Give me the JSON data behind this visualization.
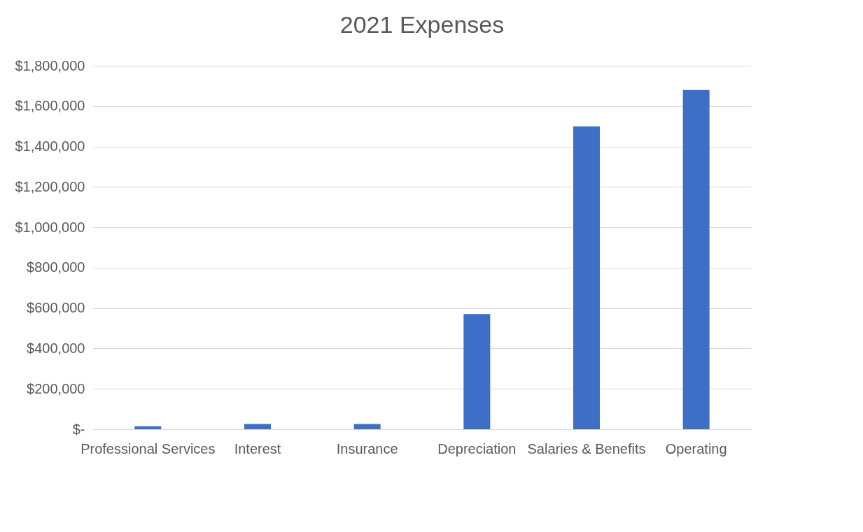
{
  "chart_data": {
    "type": "bar",
    "title": "2021 Expenses",
    "categories": [
      "Professional Services",
      "Interest",
      "Insurance",
      "Depreciation",
      "Salaries & Benefits",
      "Operating"
    ],
    "values": [
      15000,
      26000,
      26000,
      570000,
      1500000,
      1680000
    ],
    "color": "#3e6fc6",
    "ylim": [
      0,
      1800000
    ],
    "yticks": [
      {
        "value": 0,
        "label": "$-"
      },
      {
        "value": 200000,
        "label": "$200,000"
      },
      {
        "value": 400000,
        "label": "$400,000"
      },
      {
        "value": 600000,
        "label": "$600,000"
      },
      {
        "value": 800000,
        "label": "$800,000"
      },
      {
        "value": 1000000,
        "label": "$1,000,000"
      },
      {
        "value": 1200000,
        "label": "$1,200,000"
      },
      {
        "value": 1400000,
        "label": "$1,400,000"
      },
      {
        "value": 1600000,
        "label": "$1,600,000"
      },
      {
        "value": 1800000,
        "label": "$1,800,000"
      }
    ],
    "grid": "y"
  }
}
